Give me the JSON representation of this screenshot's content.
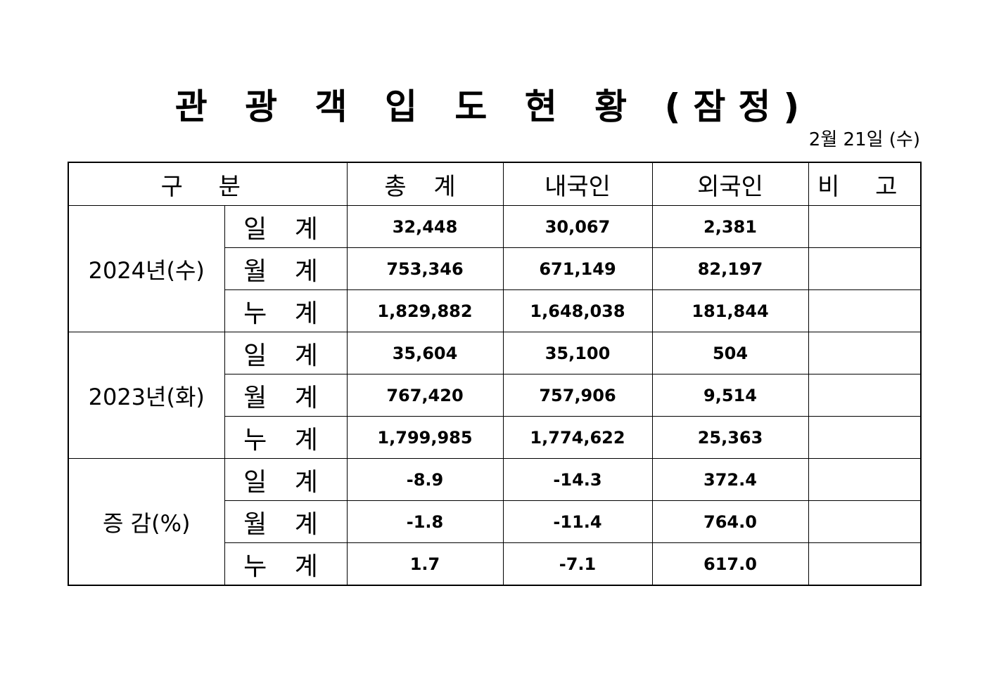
{
  "title": "관 광 객 입 도 현 황 (잠정)",
  "date": "2월 21일 (수)",
  "headers": [
    "구  분",
    "총  계",
    "내국인",
    "외국인",
    "비  고"
  ],
  "groups": [
    {
      "label": "2024년(수)",
      "rows": [
        {
          "label": "일 계",
          "total": "32,448",
          "domestic": "30,067",
          "foreign": "2,381",
          "note": ""
        },
        {
          "label": "월 계",
          "total": "753,346",
          "domestic": "671,149",
          "foreign": "82,197",
          "note": ""
        },
        {
          "label": "누 계",
          "total": "1,829,882",
          "domestic": "1,648,038",
          "foreign": "181,844",
          "note": ""
        }
      ]
    },
    {
      "label": "2023년(화)",
      "rows": [
        {
          "label": "일 계",
          "total": "35,604",
          "domestic": "35,100",
          "foreign": "504",
          "note": ""
        },
        {
          "label": "월 계",
          "total": "767,420",
          "domestic": "757,906",
          "foreign": "9,514",
          "note": ""
        },
        {
          "label": "누 계",
          "total": "1,799,985",
          "domestic": "1,774,622",
          "foreign": "25,363",
          "note": ""
        }
      ]
    },
    {
      "label": "증 감(%)",
      "rows": [
        {
          "label": "일 계",
          "total": "-8.9",
          "domestic": "-14.3",
          "foreign": "372.4",
          "note": ""
        },
        {
          "label": "월 계",
          "total": "-1.8",
          "domestic": "-11.4",
          "foreign": "764.0",
          "note": ""
        },
        {
          "label": "누 계",
          "total": "1.7",
          "domestic": "-7.1",
          "foreign": "617.0",
          "note": ""
        }
      ]
    }
  ]
}
